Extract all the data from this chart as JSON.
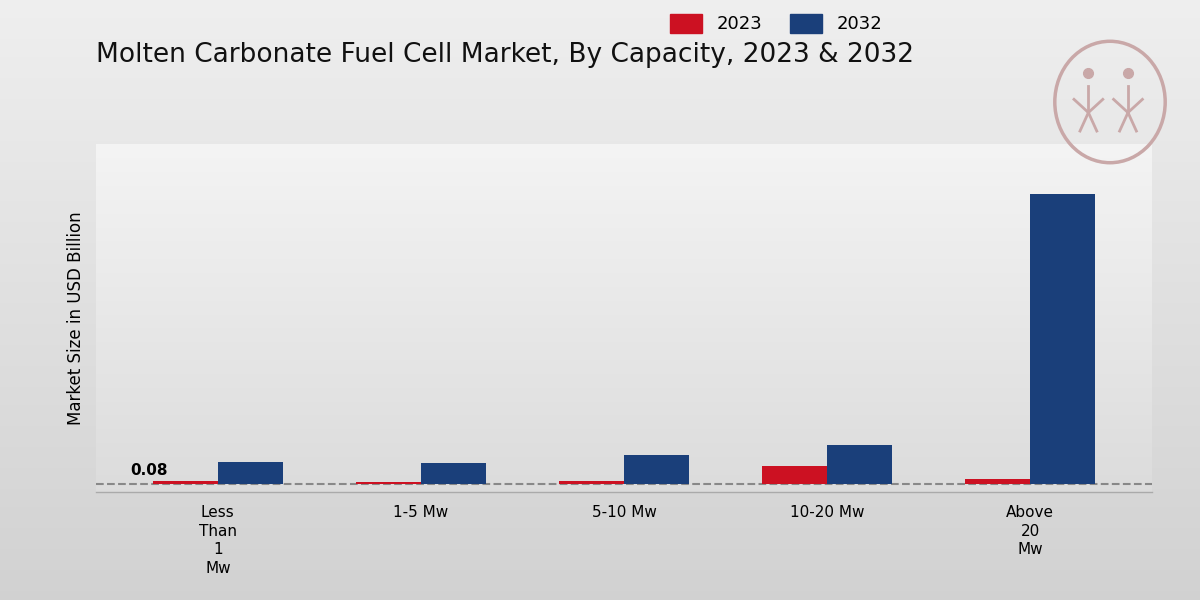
{
  "title": "Molten Carbonate Fuel Cell Market, By Capacity, 2023 & 2032",
  "ylabel": "Market Size in USD Billion",
  "categories": [
    "Less\nThan\n1\nMw",
    "1-5 Mw",
    "5-10 Mw",
    "10-20 Mw",
    "Above\n20\nMw"
  ],
  "values_2023": [
    0.015,
    0.008,
    0.012,
    0.075,
    0.02
  ],
  "values_2032": [
    0.09,
    0.085,
    0.115,
    0.155,
    1.15
  ],
  "color_2023": "#cc1122",
  "color_2032": "#1a3f7a",
  "bar_annotation": "0.08",
  "dashed_line_y": 0.0,
  "legend_labels": [
    "2023",
    "2032"
  ],
  "title_fontsize": 19,
  "axis_fontsize": 12,
  "tick_fontsize": 11,
  "legend_fontsize": 13,
  "bar_width": 0.32,
  "ylim": [
    -0.03,
    1.35
  ],
  "bg_light": 0.935,
  "bg_dark": 0.82,
  "logo_color": "#c9a8a8",
  "bottom_bar_color": "#cc1122"
}
